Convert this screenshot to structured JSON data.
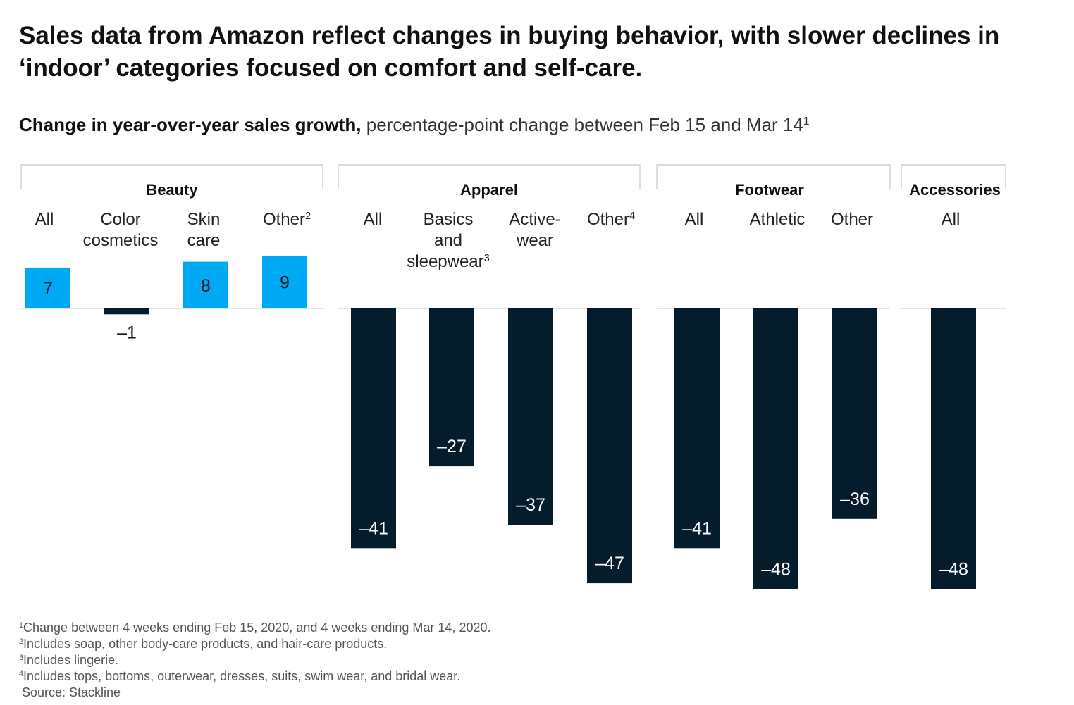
{
  "title": "Sales data from Amazon reflect changes in buying behavior, with slower declines in ‘indoor’ categories focused on comfort and self-care.",
  "subtitle": {
    "lead": "Change in year-over-year sales growth,",
    "rest": " percentage-point change between Feb 15 and Mar 14",
    "note_marker": "1"
  },
  "colors": {
    "positive": "#00a9f4",
    "negative": "#051c2c",
    "frame": "#c8c8c8",
    "baseline": "#d0d0d0"
  },
  "chart_data": {
    "type": "bar",
    "groups": [
      {
        "name": "Beauty",
        "categories": [
          "All",
          "Color cosmetics",
          "Skin care",
          "Other"
        ],
        "values": [
          7,
          -1,
          8,
          9
        ]
      },
      {
        "name": "Apparel",
        "categories": [
          "All",
          "Basics and sleepwear",
          "Active-wear",
          "Other"
        ],
        "values": [
          -41,
          -27,
          -37,
          -47
        ]
      },
      {
        "name": "Footwear",
        "categories": [
          "All",
          "Athletic",
          "Other"
        ],
        "values": [
          -41,
          -48,
          -36
        ]
      },
      {
        "name": "Accessories",
        "categories": [
          "All"
        ],
        "values": [
          -48
        ]
      }
    ],
    "category_labels": {
      "beauty": [
        "All",
        "Color\ncosmetics",
        "Skin\ncare",
        "Other"
      ],
      "apparel": [
        "All",
        "Basics\nand\nsleepwear",
        "Active-\nwear",
        "Other"
      ],
      "footwear": [
        "All",
        "Athletic",
        "Other"
      ],
      "accessories": [
        "All"
      ]
    },
    "category_note_markers": {
      "beauty_other": "2",
      "apparel_basics": "3",
      "apparel_other": "4"
    },
    "value_labels": {
      "beauty": [
        "7",
        "–1",
        "8",
        "9"
      ],
      "apparel": [
        "–41",
        "–27",
        "–37",
        "–47"
      ],
      "footwear": [
        "–41",
        "–48",
        "–36"
      ],
      "accessories": [
        "–48"
      ]
    }
  },
  "footnotes": [
    {
      "marker": "1",
      "text": "Change between 4 weeks ending Feb 15, 2020, and 4 weeks ending Mar 14, 2020."
    },
    {
      "marker": "2",
      "text": "Includes soap, other body-care products, and hair-care products."
    },
    {
      "marker": "3",
      "text": "Includes lingerie."
    },
    {
      "marker": "4",
      "text": "Includes tops, bottoms, outerwear, dresses, suits, swim wear, and bridal wear."
    }
  ],
  "source": "Source: Stackline"
}
